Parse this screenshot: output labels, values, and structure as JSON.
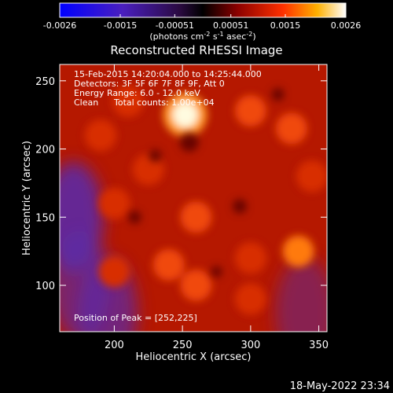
{
  "colorbar": {
    "ticks": [
      "-0.0026",
      "-0.0015",
      "-0.00051",
      "0.00051",
      "0.0015",
      "0.0026"
    ],
    "range": [
      -0.0026,
      0.0026
    ],
    "unit_prefix": "(photons cm",
    "unit_exp1": "-2",
    "unit_mid": " s",
    "unit_exp2": "-1",
    "unit_mid2": " asec",
    "unit_exp3": "-2",
    "unit_suffix": ")"
  },
  "chart_data": {
    "type": "heatmap",
    "title": "Reconstructed RHESSI Image",
    "xlabel": "Heliocentric X (arcsec)",
    "ylabel": "Heliocentric Y (arcsec)",
    "xlim": [
      160,
      356
    ],
    "ylim": [
      66,
      262
    ],
    "xticks": [
      200,
      250,
      300,
      350
    ],
    "yticks": [
      100,
      150,
      200,
      250
    ],
    "colormap": "hot-over-blue (negative blue/purple, positive red→yellow→white)",
    "peak": [
      252,
      225
    ],
    "bright_regions": [
      {
        "x": 252,
        "y": 225,
        "level": 1.0
      },
      {
        "x": 330,
        "y": 215,
        "level": 0.55
      },
      {
        "x": 300,
        "y": 228,
        "level": 0.6
      },
      {
        "x": 190,
        "y": 210,
        "level": 0.5
      },
      {
        "x": 210,
        "y": 235,
        "level": 0.5
      },
      {
        "x": 260,
        "y": 150,
        "level": 0.55
      },
      {
        "x": 240,
        "y": 115,
        "level": 0.6
      },
      {
        "x": 260,
        "y": 100,
        "level": 0.55
      },
      {
        "x": 300,
        "y": 120,
        "level": 0.5
      },
      {
        "x": 335,
        "y": 125,
        "level": 0.65
      },
      {
        "x": 345,
        "y": 180,
        "level": 0.5
      },
      {
        "x": 200,
        "y": 160,
        "level": 0.45
      },
      {
        "x": 225,
        "y": 185,
        "level": 0.5
      },
      {
        "x": 300,
        "y": 90,
        "level": 0.45
      },
      {
        "x": 200,
        "y": 110,
        "level": 0.35
      }
    ],
    "negative_regions": [
      {
        "x": 170,
        "y": 150,
        "level": -0.55
      },
      {
        "x": 175,
        "y": 100,
        "level": -0.4
      },
      {
        "x": 195,
        "y": 80,
        "level": -0.45
      },
      {
        "x": 340,
        "y": 80,
        "level": -0.3
      }
    ]
  },
  "annotations": {
    "time_range": "15-Feb-2015 14:20:04.000 to 14:25:44.000",
    "detectors": "Detectors: 3F 5F 6F 7F 8F 9F, Att 0",
    "energy": "Energy Range: 6.0 - 12.0 keV",
    "clean": "Clean",
    "counts": "Total counts: 1.00e+04",
    "peak_label": "Position of Peak = [252,225]"
  },
  "timestamp": "18-May-2022 23:34"
}
